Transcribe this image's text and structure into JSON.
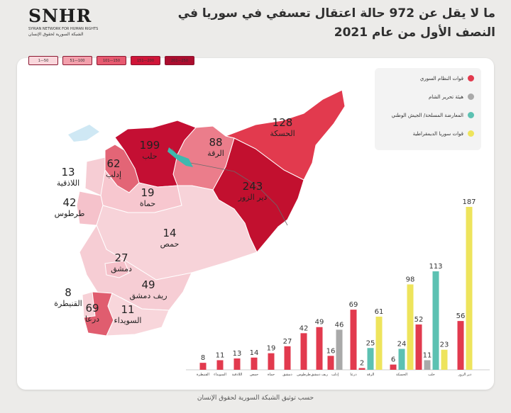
{
  "logo": {
    "main": "SNHR",
    "english": "SYRIAN NETWORK FOR HUMAN RIGHTS",
    "arabic": "الشبكة السورية لحقوق الإنسان"
  },
  "title": "ما لا يقل عن 972 حالة اعتقال تعسفي في سوريا في النصف الأول من عام 2021",
  "scale": [
    {
      "label": "1—50",
      "color": "#f9d7dc"
    },
    {
      "label": "51—100",
      "color": "#f3a0ac"
    },
    {
      "label": "101—150",
      "color": "#e75a70"
    },
    {
      "label": "151—200",
      "color": "#cf1538"
    },
    {
      "label": "201—250",
      "color": "#ab0d2e"
    }
  ],
  "legend": [
    {
      "label": "قوات النظام السوري",
      "color": "#e23a4e"
    },
    {
      "label": "هيئة تحرير الشام",
      "color": "#a9a9a9"
    },
    {
      "label": "المعارضة المسلحة/ الجيش الوطني",
      "color": "#5cc1b2"
    },
    {
      "label": "قوات سوريا الديمقراطية",
      "color": "#eee45c"
    }
  ],
  "map_labels": [
    {
      "value": "128",
      "name": "الحسكة"
    },
    {
      "value": "199",
      "name": "حلب"
    },
    {
      "value": "88",
      "name": "الرقة"
    },
    {
      "value": "62",
      "name": "إدلب"
    },
    {
      "value": "13",
      "name": "اللاذقية"
    },
    {
      "value": "243",
      "name": "دير الزور"
    },
    {
      "value": "19",
      "name": "حماة"
    },
    {
      "value": "42",
      "name": "طرطوس"
    },
    {
      "value": "14",
      "name": "حمص"
    },
    {
      "value": "27",
      "name": "دمشق"
    },
    {
      "value": "49",
      "name": "ريف دمشق"
    },
    {
      "value": "8",
      "name": "القنيطرة"
    },
    {
      "value": "69",
      "name": "درعا"
    },
    {
      "value": "11",
      "name": "السويداء"
    }
  ],
  "chart_data": {
    "type": "bar",
    "categories": [
      "القنيطرة",
      "السويداء",
      "اللاذقية",
      "حمص",
      "حماة",
      "دمشق",
      "طرطوس",
      "ريف دمشق",
      "إدلب",
      "درعا",
      "الرقة",
      "الحسكة",
      "حلب",
      "دير الزور"
    ],
    "series": [
      {
        "name": "قوات النظام السوري",
        "color": "#e23a4e",
        "values": [
          8,
          11,
          13,
          14,
          19,
          27,
          42,
          49,
          16,
          69,
          2,
          6,
          52,
          56
        ]
      },
      {
        "name": "هيئة تحرير الشام",
        "color": "#a9a9a9",
        "values": [
          null,
          null,
          null,
          null,
          null,
          null,
          null,
          null,
          46,
          null,
          null,
          null,
          11,
          null
        ]
      },
      {
        "name": "المعارضة المسلحة/ الجيش الوطني",
        "color": "#5cc1b2",
        "values": [
          null,
          null,
          null,
          null,
          null,
          null,
          null,
          null,
          null,
          null,
          25,
          24,
          113,
          null
        ]
      },
      {
        "name": "قوات سوريا الديمقراطية",
        "color": "#eee45c",
        "values": [
          null,
          null,
          null,
          null,
          null,
          null,
          null,
          null,
          null,
          null,
          61,
          98,
          23,
          187
        ]
      }
    ],
    "ylim": [
      0,
      187
    ]
  },
  "footer": "حسب توثيق الشبكة السورية لحقوق الإنسان"
}
